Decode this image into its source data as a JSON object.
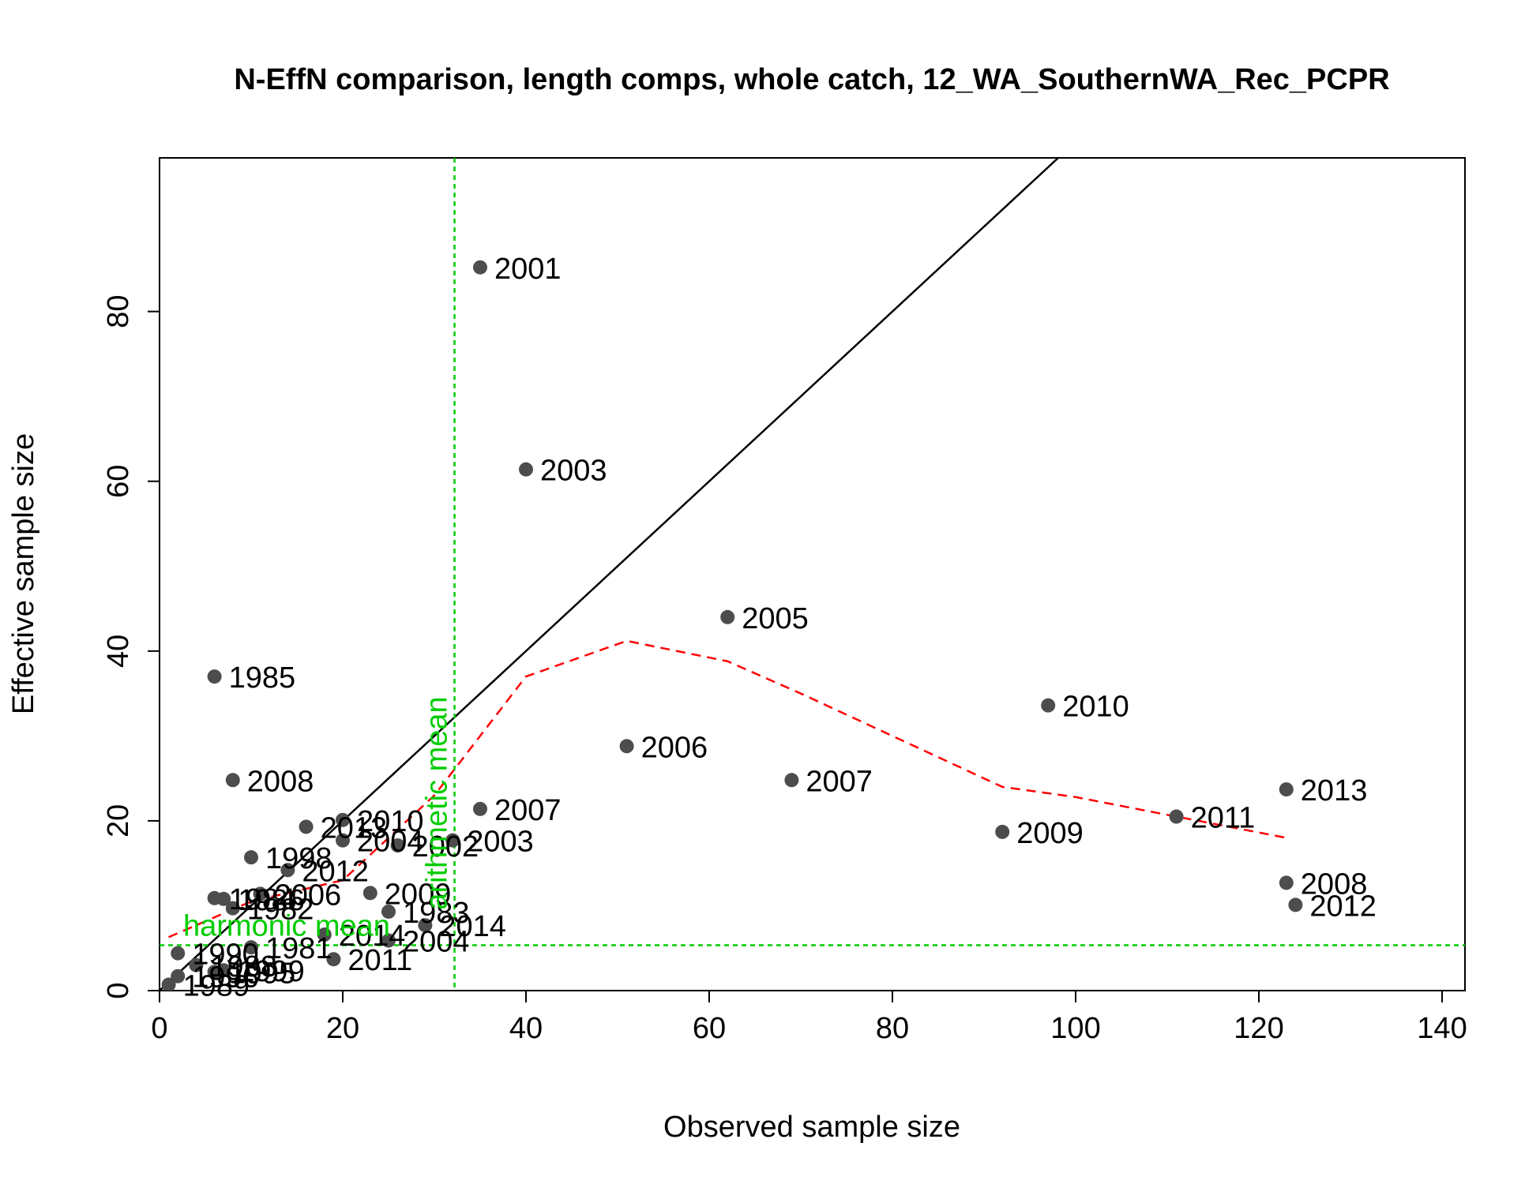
{
  "chart_data": {
    "type": "scatter",
    "title": "N-EffN comparison, length comps, whole catch, 12_WA_SouthernWA_Rec_PCPR",
    "x_label": "Observed sample size",
    "y_label": "Effective sample size",
    "xlim": [
      0,
      142.5
    ],
    "ylim": [
      0,
      98.1
    ],
    "xticks": [
      0,
      20,
      40,
      60,
      80,
      100,
      120,
      140
    ],
    "yticks": [
      0,
      20,
      40,
      60,
      80
    ],
    "color": "#4d4d4d",
    "x": [
      35,
      40,
      62,
      6,
      97,
      51,
      69,
      8,
      35,
      123,
      111,
      92,
      123,
      124,
      20,
      16,
      20,
      26,
      32,
      10,
      14,
      11,
      6,
      7,
      8,
      23,
      25,
      29,
      25,
      19,
      18,
      10,
      2,
      4,
      2,
      1,
      6,
      7
    ],
    "values": [
      85.2,
      61.4,
      44,
      37,
      33.6,
      28.8,
      24.8,
      24.8,
      21.4,
      23.7,
      20.5,
      18.7,
      12.7,
      10.1,
      20.1,
      19.3,
      17.7,
      17.1,
      17.7,
      15.7,
      14.2,
      11.4,
      10.9,
      10.8,
      9.7,
      11.5,
      9.3,
      7.7,
      5.9,
      3.7,
      6.6,
      5.1,
      4.4,
      3.0,
      1.7,
      0.7,
      2.2,
      2.4
    ],
    "point_labels": [
      "2001",
      "2003",
      "2005",
      "1985",
      "2010",
      "2006",
      "2007",
      "2008",
      "2007",
      "2013",
      "2011",
      "2009",
      "2008",
      "2012",
      "2010",
      "2013",
      "2004",
      "2002",
      "2003",
      "1998",
      "2012",
      "2006",
      "1984",
      "1986",
      "1982",
      "2009",
      "1983",
      "2014",
      "2004",
      "2011",
      "2014",
      "1981",
      "1990",
      "1988",
      "1996",
      "1989",
      "1995",
      "1999"
    ],
    "identity_line": {
      "x": [
        0,
        98.1
      ],
      "values": [
        0,
        98.1
      ],
      "color": "#000000"
    },
    "fit_line": {
      "x": [
        1,
        10,
        20,
        30,
        40,
        51,
        62,
        70,
        80,
        92,
        100,
        111,
        123
      ],
      "values": [
        6.3,
        10.5,
        13,
        23,
        37,
        41.2,
        38.8,
        35,
        30,
        24,
        22.8,
        20.5,
        18
      ],
      "color": "#ff0000"
    },
    "mean_color": "#00cc00",
    "arithmetic_mean": {
      "label": "arithmetic mean",
      "x": 32.2
    },
    "harmonic_mean": {
      "label": "harmonic mean",
      "y": 5.35
    }
  }
}
